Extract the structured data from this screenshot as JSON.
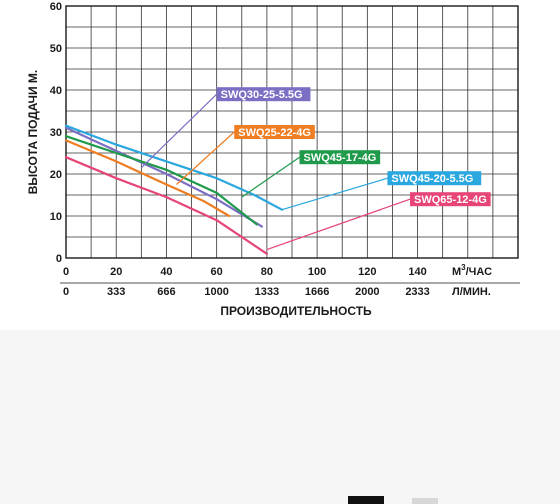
{
  "chart_data": {
    "type": "line",
    "ylabel": "ВЫСОТА ПОДАЧИ М.",
    "xlabel": "ПРОИЗВОДИТЕЛЬНОСТЬ",
    "xunit_top": "М³/ЧАС",
    "xunit_top_base": "М",
    "xunit_top_sup": "3",
    "xunit_top_rest": "/ЧАС",
    "xunit_bottom": "Л/МИН.",
    "xlim": [
      0,
      180
    ],
    "ylim": [
      0,
      60
    ],
    "grid": true,
    "y_ticks": [
      "0",
      "10",
      "20",
      "30",
      "40",
      "50",
      "60"
    ],
    "x_ticks_top": [
      "0",
      "20",
      "40",
      "60",
      "80",
      "100",
      "120",
      "140"
    ],
    "x_ticks_bottom": [
      "0",
      "333",
      "666",
      "1000",
      "1333",
      "1666",
      "2000",
      "2333"
    ],
    "series": [
      {
        "name": "SWQ30-25-5.5G",
        "color": "#7b6fc4",
        "x": [
          0,
          20,
          40,
          60,
          78
        ],
        "y": [
          31,
          25.5,
          20,
          14,
          7.5
        ]
      },
      {
        "name": "SWQ25-22-4G",
        "color": "#ef7d22",
        "x": [
          0,
          20,
          40,
          55,
          65
        ],
        "y": [
          28,
          23,
          17.5,
          13.5,
          10
        ]
      },
      {
        "name": "SWQ45-17-4G",
        "color": "#1f9a4a",
        "x": [
          0,
          20,
          40,
          60,
          76
        ],
        "y": [
          29,
          25,
          21,
          15.5,
          8
        ]
      },
      {
        "name": "SWQ45-20-5.5G",
        "color": "#2aa7df",
        "x": [
          0,
          20,
          40,
          60,
          75,
          86
        ],
        "y": [
          31.5,
          27,
          23,
          19,
          15,
          11.5
        ]
      },
      {
        "name": "SWQ65-12-4G",
        "color": "#e64576",
        "x": [
          0,
          20,
          40,
          60,
          80
        ],
        "y": [
          24,
          19,
          14.5,
          9,
          1
        ]
      }
    ],
    "annotations": [
      {
        "text": "SWQ30-25-5.5G",
        "color": "#7b6fc4",
        "leader_from": [
          30,
          21.5
        ],
        "leader_to": [
          60,
          39
        ]
      },
      {
        "text": "SWQ25-22-4G",
        "color": "#ef7d22",
        "leader_from": [
          44,
          17.5
        ],
        "leader_to": [
          67,
          30
        ]
      },
      {
        "text": "SWQ45-17-4G",
        "color": "#1f9a4a",
        "leader_from": [
          70,
          14.5
        ],
        "leader_to": [
          93,
          24
        ]
      },
      {
        "text": "SWQ45-20-5.5G",
        "color": "#2aa7df",
        "leader_from": [
          86,
          11.5
        ],
        "leader_to": [
          128,
          19
        ]
      },
      {
        "text": "SWQ65-12-4G",
        "color": "#e64576",
        "leader_from": [
          80,
          2
        ],
        "leader_to": [
          137,
          14
        ]
      }
    ]
  }
}
